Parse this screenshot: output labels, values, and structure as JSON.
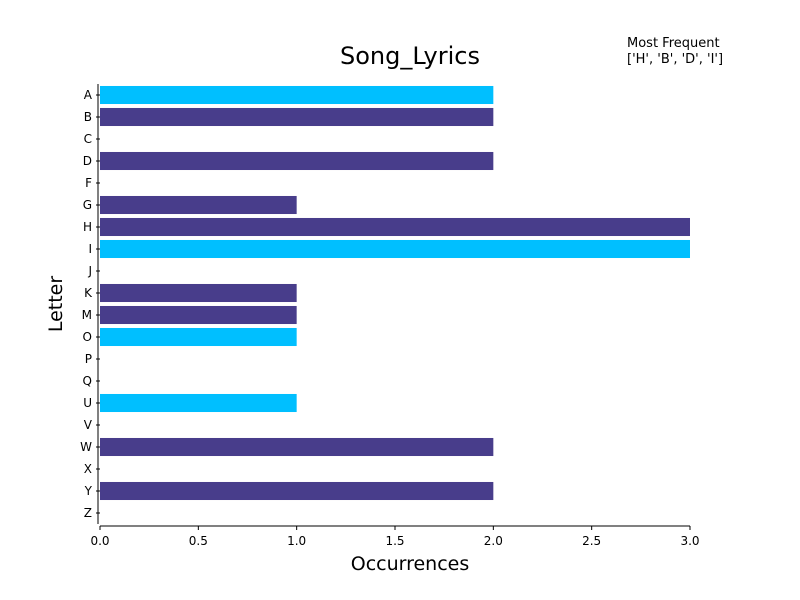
{
  "chart_data": {
    "type": "bar",
    "orientation": "horizontal",
    "title": "Song_Lyrics",
    "xlabel": "Occurrences",
    "ylabel": "Letter",
    "xlim": [
      0,
      3
    ],
    "xticks": [
      "0.0",
      "0.5",
      "1.0",
      "1.5",
      "2.0",
      "2.5",
      "3.0"
    ],
    "categories": [
      "A",
      "B",
      "C",
      "D",
      "F",
      "G",
      "H",
      "I",
      "J",
      "K",
      "M",
      "O",
      "P",
      "Q",
      "U",
      "V",
      "W",
      "X",
      "Y",
      "Z"
    ],
    "values": [
      2,
      2,
      0,
      2,
      0,
      1,
      3,
      3,
      0,
      1,
      1,
      1,
      0,
      0,
      1,
      0,
      2,
      0,
      2,
      0
    ],
    "bar_colors": [
      "#00bfff",
      "#483d8b",
      "#483d8b",
      "#483d8b",
      "#483d8b",
      "#483d8b",
      "#483d8b",
      "#00bfff",
      "#483d8b",
      "#483d8b",
      "#483d8b",
      "#00bfff",
      "#483d8b",
      "#483d8b",
      "#00bfff",
      "#483d8b",
      "#483d8b",
      "#483d8b",
      "#483d8b",
      "#483d8b"
    ],
    "grid": false,
    "annotation": {
      "heading": "Most Frequent",
      "text": "['H', 'B', 'D', 'I']",
      "placement": "top-right"
    }
  }
}
